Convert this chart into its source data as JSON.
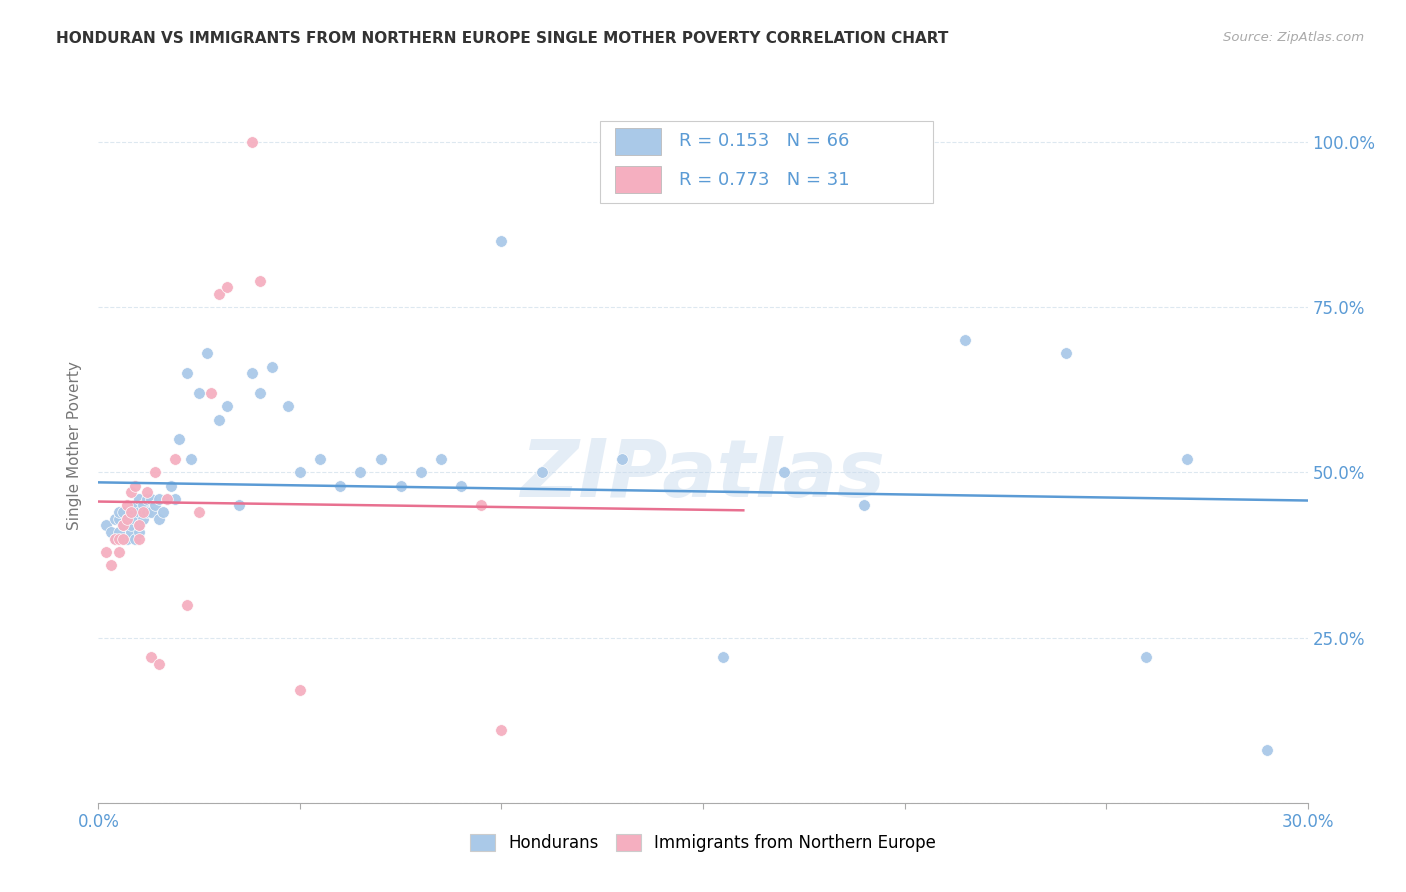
{
  "title": "HONDURAN VS IMMIGRANTS FROM NORTHERN EUROPE SINGLE MOTHER POVERTY CORRELATION CHART",
  "source": "Source: ZipAtlas.com",
  "ylabel": "Single Mother Poverty",
  "legend_label1": "Hondurans",
  "legend_label2": "Immigrants from Northern Europe",
  "r1": 0.153,
  "n1": 66,
  "r2": 0.773,
  "n2": 31,
  "xlim": [
    0.0,
    0.3
  ],
  "ylim": [
    0.0,
    1.08
  ],
  "yticks": [
    0.0,
    0.25,
    0.5,
    0.75,
    1.0
  ],
  "ytick_labels": [
    "",
    "25.0%",
    "50.0%",
    "75.0%",
    "100.0%"
  ],
  "scatter1_color": "#aac9e8",
  "scatter2_color": "#f5afc0",
  "line1_color": "#5b9bd5",
  "line2_color": "#e87090",
  "bg_color": "#ffffff",
  "grid_color": "#dde8f0",
  "title_color": "#333333",
  "axis_label_color": "#5b9bd5",
  "watermark": "ZIPatlas",
  "scatter1_x": [
    0.002,
    0.003,
    0.004,
    0.004,
    0.005,
    0.005,
    0.005,
    0.006,
    0.006,
    0.007,
    0.007,
    0.008,
    0.008,
    0.008,
    0.009,
    0.009,
    0.009,
    0.01,
    0.01,
    0.01,
    0.01,
    0.011,
    0.011,
    0.012,
    0.012,
    0.013,
    0.013,
    0.014,
    0.015,
    0.015,
    0.016,
    0.017,
    0.018,
    0.019,
    0.02,
    0.022,
    0.023,
    0.025,
    0.027,
    0.03,
    0.032,
    0.035,
    0.038,
    0.04,
    0.043,
    0.047,
    0.05,
    0.055,
    0.06,
    0.065,
    0.07,
    0.075,
    0.08,
    0.085,
    0.09,
    0.1,
    0.11,
    0.13,
    0.155,
    0.17,
    0.19,
    0.215,
    0.24,
    0.26,
    0.27,
    0.29
  ],
  "scatter1_y": [
    0.42,
    0.41,
    0.43,
    0.4,
    0.41,
    0.43,
    0.44,
    0.42,
    0.44,
    0.4,
    0.43,
    0.41,
    0.42,
    0.44,
    0.4,
    0.43,
    0.45,
    0.41,
    0.42,
    0.44,
    0.46,
    0.43,
    0.45,
    0.44,
    0.46,
    0.44,
    0.46,
    0.45,
    0.43,
    0.46,
    0.44,
    0.46,
    0.48,
    0.46,
    0.55,
    0.65,
    0.52,
    0.62,
    0.68,
    0.58,
    0.6,
    0.45,
    0.65,
    0.62,
    0.66,
    0.6,
    0.5,
    0.52,
    0.48,
    0.5,
    0.52,
    0.48,
    0.5,
    0.52,
    0.48,
    0.85,
    0.5,
    0.52,
    0.22,
    0.5,
    0.45,
    0.7,
    0.68,
    0.22,
    0.52,
    0.08
  ],
  "scatter2_x": [
    0.002,
    0.003,
    0.004,
    0.005,
    0.005,
    0.006,
    0.006,
    0.007,
    0.007,
    0.008,
    0.008,
    0.009,
    0.01,
    0.01,
    0.011,
    0.012,
    0.013,
    0.014,
    0.015,
    0.017,
    0.019,
    0.022,
    0.025,
    0.028,
    0.03,
    0.032,
    0.038,
    0.04,
    0.05,
    0.095,
    0.1
  ],
  "scatter2_y": [
    0.38,
    0.36,
    0.4,
    0.38,
    0.4,
    0.42,
    0.4,
    0.43,
    0.45,
    0.44,
    0.47,
    0.48,
    0.4,
    0.42,
    0.44,
    0.47,
    0.22,
    0.5,
    0.21,
    0.46,
    0.52,
    0.3,
    0.44,
    0.62,
    0.77,
    0.78,
    1.0,
    0.79,
    0.17,
    0.45,
    0.11
  ]
}
